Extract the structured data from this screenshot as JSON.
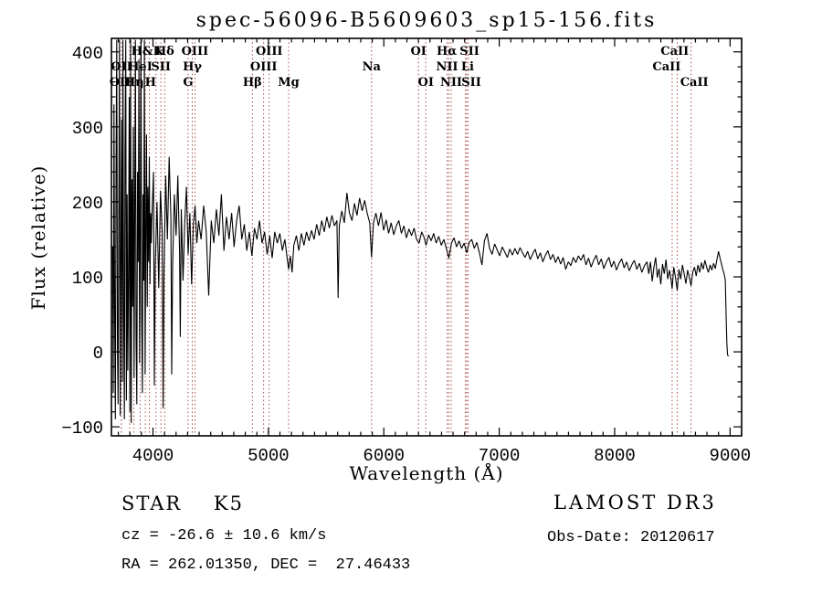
{
  "chart_data": {
    "type": "line",
    "title": "spec-56096-B5609603_sp15-156.fits",
    "xlabel": "Wavelength (Å)",
    "ylabel": "Flux (relative)",
    "xlim": [
      3640,
      9100
    ],
    "ylim": [
      -112,
      418
    ],
    "grid": false,
    "legend": "none",
    "xticks": {
      "major": [
        4000,
        5000,
        6000,
        7000,
        8000,
        9000
      ],
      "minor_step": 100
    },
    "yticks": {
      "major": [
        -100,
        0,
        100,
        200,
        300,
        400
      ],
      "minor_step": 20
    },
    "line_color": "#000000",
    "marker_color": "#9e3939",
    "line_markers": [
      {
        "w": 3726.0,
        "label": "OII",
        "row": 3,
        "la": 3716
      },
      {
        "w": 3727.1,
        "label": "OII",
        "row": 2
      },
      {
        "w": 3798.0,
        "label": "",
        "row": 0
      },
      {
        "w": 3835.4,
        "label": "Hη",
        "row": 3
      },
      {
        "w": 3889.0,
        "label": "HeI",
        "row": 2
      },
      {
        "w": 3933.7,
        "label": "H&K",
        "row": 1,
        "la": 3951
      },
      {
        "w": 3968.5,
        "label": "H",
        "row": 3,
        "la": 3978
      },
      {
        "w": 4026.2,
        "label": "",
        "row": 0
      },
      {
        "w": 4068.6,
        "label": "SII",
        "row": 2
      },
      {
        "w": 4101.7,
        "label": "Hδ",
        "row": 1
      },
      {
        "w": 4304.4,
        "label": "G",
        "row": 3
      },
      {
        "w": 4340.5,
        "label": "Hγ",
        "row": 2
      },
      {
        "w": 4363.2,
        "label": "OIII",
        "row": 1
      },
      {
        "w": 4861.3,
        "label": "Hβ",
        "row": 3
      },
      {
        "w": 4958.9,
        "label": "OIII",
        "row": 2
      },
      {
        "w": 5006.8,
        "label": "OIII",
        "row": 1
      },
      {
        "w": 5175.4,
        "label": "Mg",
        "row": 3
      },
      {
        "w": 5893.9,
        "label": "Na",
        "row": 2
      },
      {
        "w": 6300.3,
        "label": "OI",
        "row": 1
      },
      {
        "w": 6363.8,
        "label": "OI",
        "row": 3
      },
      {
        "w": 6548.1,
        "label": "NII",
        "row": 2
      },
      {
        "w": 6562.8,
        "label": "Hα",
        "row": 1,
        "la": 6545
      },
      {
        "w": 6583.4,
        "label": "NII",
        "row": 3
      },
      {
        "w": 6707.9,
        "label": "Li",
        "row": 2,
        "la": 6725
      },
      {
        "w": 6716.4,
        "label": "SII",
        "row": 1,
        "la": 6742
      },
      {
        "w": 6730.8,
        "label": "SII",
        "row": 3,
        "la": 6758
      },
      {
        "w": 8498.0,
        "label": "CaII",
        "row": 2,
        "la": 8450
      },
      {
        "w": 8542.1,
        "label": "CaII",
        "row": 1,
        "la": 8520
      },
      {
        "w": 8662.1,
        "label": "CaII",
        "row": 3,
        "la": 8690
      }
    ],
    "spectrum": [
      [
        3650,
        140
      ],
      [
        3656,
        -55
      ],
      [
        3662,
        330
      ],
      [
        3668,
        60
      ],
      [
        3674,
        -90
      ],
      [
        3680,
        250
      ],
      [
        3686,
        416
      ],
      [
        3692,
        10
      ],
      [
        3698,
        -70
      ],
      [
        3704,
        190
      ],
      [
        3710,
        416
      ],
      [
        3716,
        -85
      ],
      [
        3722,
        130
      ],
      [
        3728,
        310
      ],
      [
        3734,
        -40
      ],
      [
        3740,
        416
      ],
      [
        3746,
        50
      ],
      [
        3752,
        -90
      ],
      [
        3758,
        270
      ],
      [
        3764,
        416
      ],
      [
        3770,
        -65
      ],
      [
        3776,
        210
      ],
      [
        3782,
        -25
      ],
      [
        3788,
        100
      ],
      [
        3794,
        340
      ],
      [
        3800,
        -80
      ],
      [
        3806,
        416
      ],
      [
        3812,
        -95
      ],
      [
        3818,
        230
      ],
      [
        3824,
        60
      ],
      [
        3830,
        300
      ],
      [
        3836,
        -35
      ],
      [
        3842,
        180
      ],
      [
        3848,
        416
      ],
      [
        3854,
        20
      ],
      [
        3860,
        -70
      ],
      [
        3866,
        240
      ],
      [
        3872,
        120
      ],
      [
        3878,
        390
      ],
      [
        3884,
        -15
      ],
      [
        3890,
        160
      ],
      [
        3896,
        416
      ],
      [
        3902,
        45
      ],
      [
        3908,
        -55
      ],
      [
        3914,
        210
      ],
      [
        3920,
        95
      ],
      [
        3926,
        416
      ],
      [
        3932,
        -30
      ],
      [
        3938,
        170
      ],
      [
        3944,
        290
      ],
      [
        3950,
        60
      ],
      [
        3956,
        220
      ],
      [
        3962,
        120
      ],
      [
        3968,
        260
      ],
      [
        3974,
        90
      ],
      [
        3980,
        185
      ],
      [
        3986,
        145
      ],
      [
        3990,
        175
      ],
      [
        4005,
        240
      ],
      [
        4012,
        -45
      ],
      [
        4020,
        115
      ],
      [
        4035,
        200
      ],
      [
        4050,
        85
      ],
      [
        4065,
        215
      ],
      [
        4080,
        160
      ],
      [
        4088,
        -75
      ],
      [
        4095,
        100
      ],
      [
        4110,
        235
      ],
      [
        4125,
        150
      ],
      [
        4140,
        260
      ],
      [
        4155,
        180
      ],
      [
        4162,
        -30
      ],
      [
        4170,
        115
      ],
      [
        4185,
        210
      ],
      [
        4200,
        155
      ],
      [
        4215,
        235
      ],
      [
        4230,
        135
      ],
      [
        4237,
        20
      ],
      [
        4245,
        190
      ],
      [
        4260,
        95
      ],
      [
        4275,
        170
      ],
      [
        4290,
        220
      ],
      [
        4305,
        130
      ],
      [
        4320,
        185
      ],
      [
        4335,
        90
      ],
      [
        4350,
        170
      ],
      [
        4365,
        195
      ],
      [
        4380,
        145
      ],
      [
        4395,
        175
      ],
      [
        4417,
        150
      ],
      [
        4439,
        195
      ],
      [
        4461,
        160
      ],
      [
        4483,
        75
      ],
      [
        4505,
        175
      ],
      [
        4527,
        145
      ],
      [
        4549,
        190
      ],
      [
        4571,
        155
      ],
      [
        4593,
        210
      ],
      [
        4615,
        135
      ],
      [
        4637,
        180
      ],
      [
        4659,
        150
      ],
      [
        4681,
        185
      ],
      [
        4703,
        140
      ],
      [
        4725,
        175
      ],
      [
        4747,
        195
      ],
      [
        4769,
        150
      ],
      [
        4791,
        170
      ],
      [
        4813,
        135
      ],
      [
        4835,
        160
      ],
      [
        4857,
        128
      ],
      [
        4879,
        165
      ],
      [
        4901,
        150
      ],
      [
        4923,
        175
      ],
      [
        4945,
        145
      ],
      [
        4967,
        160
      ],
      [
        4989,
        130
      ],
      [
        5011,
        155
      ],
      [
        5033,
        125
      ],
      [
        5055,
        160
      ],
      [
        5077,
        145
      ],
      [
        5099,
        158
      ],
      [
        5121,
        135
      ],
      [
        5143,
        150
      ],
      [
        5160,
        128
      ],
      [
        5175,
        110
      ],
      [
        5190,
        128
      ],
      [
        5205,
        106
      ],
      [
        5220,
        142
      ],
      [
        5242,
        155
      ],
      [
        5264,
        135
      ],
      [
        5286,
        158
      ],
      [
        5308,
        142
      ],
      [
        5330,
        160
      ],
      [
        5352,
        148
      ],
      [
        5374,
        162
      ],
      [
        5396,
        150
      ],
      [
        5418,
        170
      ],
      [
        5440,
        155
      ],
      [
        5462,
        175
      ],
      [
        5484,
        160
      ],
      [
        5506,
        180
      ],
      [
        5528,
        165
      ],
      [
        5550,
        182
      ],
      [
        5572,
        168
      ],
      [
        5594,
        175
      ],
      [
        5604,
        72
      ],
      [
        5614,
        168
      ],
      [
        5636,
        188
      ],
      [
        5658,
        172
      ],
      [
        5680,
        212
      ],
      [
        5702,
        185
      ],
      [
        5724,
        175
      ],
      [
        5746,
        198
      ],
      [
        5768,
        182
      ],
      [
        5790,
        205
      ],
      [
        5812,
        188
      ],
      [
        5834,
        202
      ],
      [
        5856,
        185
      ],
      [
        5878,
        172
      ],
      [
        5894,
        126
      ],
      [
        5910,
        172
      ],
      [
        5932,
        185
      ],
      [
        5954,
        168
      ],
      [
        5976,
        186
      ],
      [
        5998,
        162
      ],
      [
        6020,
        176
      ],
      [
        6042,
        158
      ],
      [
        6064,
        172
      ],
      [
        6086,
        156
      ],
      [
        6108,
        168
      ],
      [
        6130,
        175
      ],
      [
        6152,
        158
      ],
      [
        6174,
        168
      ],
      [
        6196,
        152
      ],
      [
        6218,
        164
      ],
      [
        6240,
        155
      ],
      [
        6262,
        165
      ],
      [
        6284,
        150
      ],
      [
        6306,
        145
      ],
      [
        6328,
        160
      ],
      [
        6350,
        152
      ],
      [
        6366,
        142
      ],
      [
        6388,
        156
      ],
      [
        6410,
        148
      ],
      [
        6432,
        158
      ],
      [
        6454,
        145
      ],
      [
        6476,
        154
      ],
      [
        6498,
        142
      ],
      [
        6520,
        150
      ],
      [
        6542,
        138
      ],
      [
        6564,
        125
      ],
      [
        6586,
        145
      ],
      [
        6608,
        152
      ],
      [
        6630,
        140
      ],
      [
        6652,
        148
      ],
      [
        6674,
        138
      ],
      [
        6696,
        145
      ],
      [
        6718,
        132
      ],
      [
        6740,
        146
      ],
      [
        6762,
        150
      ],
      [
        6784,
        138
      ],
      [
        6806,
        146
      ],
      [
        6828,
        132
      ],
      [
        6850,
        116
      ],
      [
        6872,
        148
      ],
      [
        6894,
        158
      ],
      [
        6916,
        138
      ],
      [
        6938,
        130
      ],
      [
        6960,
        144
      ],
      [
        6982,
        136
      ],
      [
        7004,
        128
      ],
      [
        7026,
        140
      ],
      [
        7048,
        133
      ],
      [
        7070,
        126
      ],
      [
        7092,
        137
      ],
      [
        7114,
        129
      ],
      [
        7136,
        138
      ],
      [
        7158,
        130
      ],
      [
        7180,
        139
      ],
      [
        7202,
        132
      ],
      [
        7224,
        126
      ],
      [
        7246,
        134
      ],
      [
        7268,
        123
      ],
      [
        7290,
        131
      ],
      [
        7312,
        137
      ],
      [
        7334,
        124
      ],
      [
        7356,
        132
      ],
      [
        7378,
        120
      ],
      [
        7400,
        129
      ],
      [
        7422,
        135
      ],
      [
        7444,
        123
      ],
      [
        7466,
        130
      ],
      [
        7488,
        119
      ],
      [
        7510,
        127
      ],
      [
        7532,
        117
      ],
      [
        7554,
        126
      ],
      [
        7576,
        110
      ],
      [
        7598,
        120
      ],
      [
        7620,
        115
      ],
      [
        7642,
        126
      ],
      [
        7664,
        119
      ],
      [
        7686,
        128
      ],
      [
        7708,
        122
      ],
      [
        7730,
        130
      ],
      [
        7752,
        116
      ],
      [
        7774,
        125
      ],
      [
        7796,
        113
      ],
      [
        7818,
        122
      ],
      [
        7840,
        129
      ],
      [
        7862,
        116
      ],
      [
        7884,
        124
      ],
      [
        7906,
        111
      ],
      [
        7928,
        120
      ],
      [
        7950,
        126
      ],
      [
        7972,
        113
      ],
      [
        7994,
        121
      ],
      [
        8016,
        109
      ],
      [
        8038,
        118
      ],
      [
        8060,
        124
      ],
      [
        8082,
        112
      ],
      [
        8104,
        120
      ],
      [
        8126,
        108
      ],
      [
        8148,
        116
      ],
      [
        8170,
        122
      ],
      [
        8192,
        110
      ],
      [
        8214,
        118
      ],
      [
        8236,
        106
      ],
      [
        8258,
        115
      ],
      [
        8280,
        120
      ],
      [
        8295,
        104
      ],
      [
        8310,
        120
      ],
      [
        8325,
        94
      ],
      [
        8340,
        113
      ],
      [
        8355,
        126
      ],
      [
        8370,
        99
      ],
      [
        8385,
        111
      ],
      [
        8400,
        90
      ],
      [
        8415,
        117
      ],
      [
        8430,
        104
      ],
      [
        8445,
        123
      ],
      [
        8460,
        97
      ],
      [
        8475,
        109
      ],
      [
        8490,
        95
      ],
      [
        8498,
        84
      ],
      [
        8512,
        113
      ],
      [
        8527,
        99
      ],
      [
        8542,
        82
      ],
      [
        8557,
        110
      ],
      [
        8572,
        97
      ],
      [
        8587,
        116
      ],
      [
        8602,
        104
      ],
      [
        8617,
        91
      ],
      [
        8632,
        109
      ],
      [
        8647,
        99
      ],
      [
        8662,
        88
      ],
      [
        8677,
        106
      ],
      [
        8692,
        113
      ],
      [
        8707,
        101
      ],
      [
        8722,
        116
      ],
      [
        8737,
        106
      ],
      [
        8752,
        119
      ],
      [
        8767,
        110
      ],
      [
        8782,
        122
      ],
      [
        8797,
        113
      ],
      [
        8812,
        106
      ],
      [
        8827,
        116
      ],
      [
        8842,
        109
      ],
      [
        8857,
        118
      ],
      [
        8872,
        111
      ],
      [
        8887,
        124
      ],
      [
        8900,
        134
      ],
      [
        8912,
        126
      ],
      [
        8924,
        118
      ],
      [
        8936,
        110
      ],
      [
        8948,
        104
      ],
      [
        8958,
        96
      ],
      [
        8966,
        45
      ],
      [
        8972,
        12
      ],
      [
        8978,
        -4
      ],
      [
        8986,
        -6
      ]
    ]
  },
  "footer": {
    "star_class": "STAR    K5",
    "survey": "LAMOST DR3",
    "cz_line": "cz = -26.6 ± 10.6 km/s",
    "obs_date_line": "Obs-Date: 20120617",
    "radec_line": "RA = 262.01350, DEC =  27.46433"
  }
}
